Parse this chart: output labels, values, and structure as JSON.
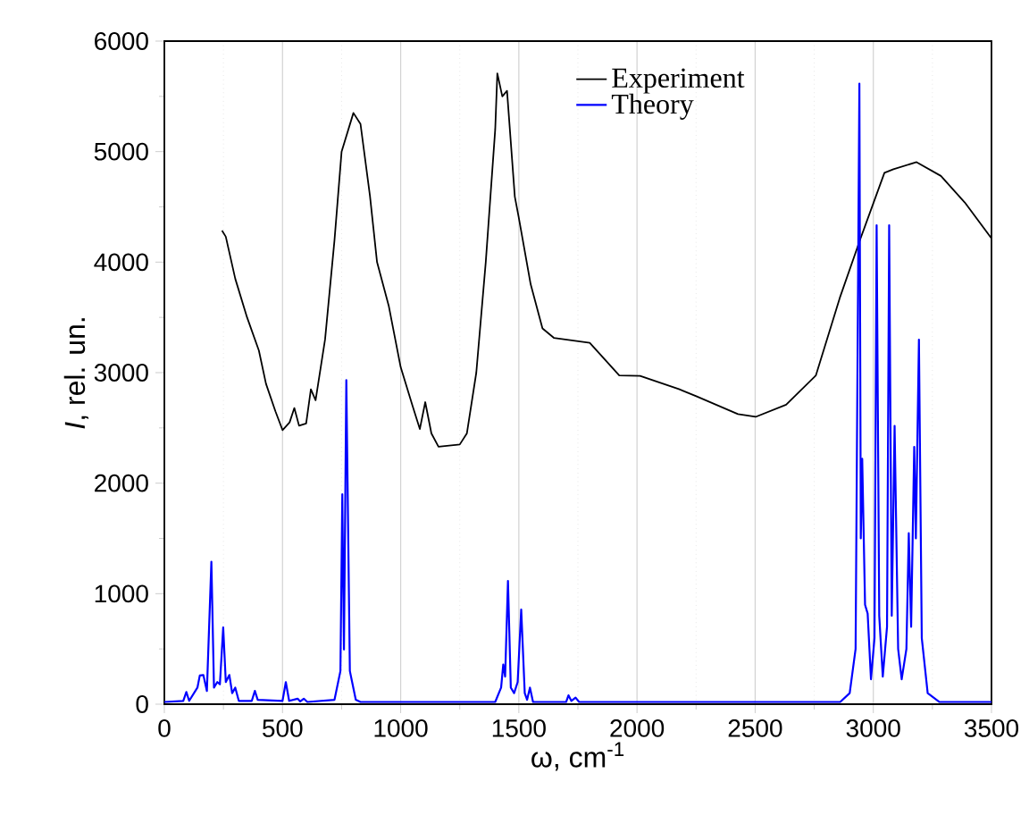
{
  "chart_data": {
    "type": "line",
    "xlabel": "ω, cm$^{-1}$",
    "ylabel": "*I*, rel. un.",
    "xlim": [
      0,
      3500
    ],
    "ylim": [
      0,
      6000
    ],
    "xticks": [
      0,
      500,
      1000,
      1500,
      2000,
      2500,
      3000,
      3500
    ],
    "yticks": [
      0,
      1000,
      2000,
      3000,
      4000,
      5000,
      6000
    ],
    "grid": "x",
    "legend": "top right",
    "marker": "none",
    "line_style": "solid",
    "series": [
      {
        "name": "Experiment",
        "color": "#000000",
        "x": [
          244,
          260,
          300,
          350,
          400,
          430,
          470,
          500,
          530,
          550,
          570,
          600,
          620,
          640,
          680,
          720,
          750,
          800,
          830,
          870,
          900,
          950,
          1000,
          1050,
          1081,
          1104,
          1130,
          1160,
          1250,
          1280,
          1320,
          1360,
          1400,
          1409,
          1430,
          1450,
          1483,
          1500,
          1550,
          1600,
          1648,
          1800,
          1925,
          2013,
          2177,
          2253,
          2427,
          2502,
          2631,
          2757,
          2858,
          2946,
          3047,
          3085,
          3183,
          3286,
          3387,
          3500
        ],
        "values": [
          4285,
          4230,
          3850,
          3500,
          3200,
          2900,
          2650,
          2480,
          2550,
          2680,
          2520,
          2540,
          2850,
          2750,
          3300,
          4200,
          5000,
          5350,
          5250,
          4600,
          4000,
          3600,
          3050,
          2700,
          2490,
          2733,
          2450,
          2330,
          2350,
          2450,
          3000,
          4000,
          5200,
          5708,
          5500,
          5550,
          4592,
          4400,
          3800,
          3400,
          3315,
          3270,
          2975,
          2970,
          2851,
          2785,
          2625,
          2600,
          2710,
          2975,
          3676,
          4215,
          4808,
          4840,
          4905,
          4780,
          4540,
          4215
        ]
      },
      {
        "name": "Theory",
        "color": "#0000ff",
        "x": [
          0,
          80,
          93,
          105,
          140,
          150,
          165,
          180,
          199,
          210,
          224,
          235,
          249,
          260,
          275,
          287,
          300,
          315,
          370,
          383,
          395,
          500,
          514,
          528,
          564,
          575,
          590,
          605,
          720,
          745,
          753,
          760,
          770,
          785,
          810,
          830,
          1400,
          1425,
          1434,
          1442,
          1454,
          1466,
          1480,
          1495,
          1510,
          1525,
          1535,
          1547,
          1560,
          1700,
          1710,
          1722,
          1740,
          1755,
          2860,
          2900,
          2925,
          2941,
          2947,
          2953,
          2965,
          2976,
          2990,
          3005,
          3014,
          3025,
          3040,
          3058,
          3067,
          3078,
          3090,
          3105,
          3120,
          3140,
          3150,
          3160,
          3173,
          3180,
          3193,
          3205,
          3230,
          3280,
          3500
        ],
        "values": [
          20,
          30,
          110,
          30,
          150,
          260,
          264,
          120,
          1289,
          150,
          200,
          180,
          695,
          200,
          264,
          100,
          150,
          30,
          30,
          120,
          40,
          30,
          200,
          30,
          50,
          25,
          50,
          20,
          40,
          300,
          1900,
          495,
          2932,
          300,
          40,
          20,
          20,
          150,
          360,
          250,
          1115,
          150,
          100,
          200,
          857,
          100,
          40,
          150,
          20,
          20,
          80,
          30,
          60,
          20,
          20,
          100,
          500,
          5616,
          1500,
          2220,
          900,
          820,
          226,
          600,
          4334,
          800,
          250,
          700,
          4334,
          800,
          2518,
          500,
          226,
          500,
          1547,
          700,
          2328,
          1500,
          3299,
          600,
          100,
          20,
          20
        ]
      }
    ]
  }
}
